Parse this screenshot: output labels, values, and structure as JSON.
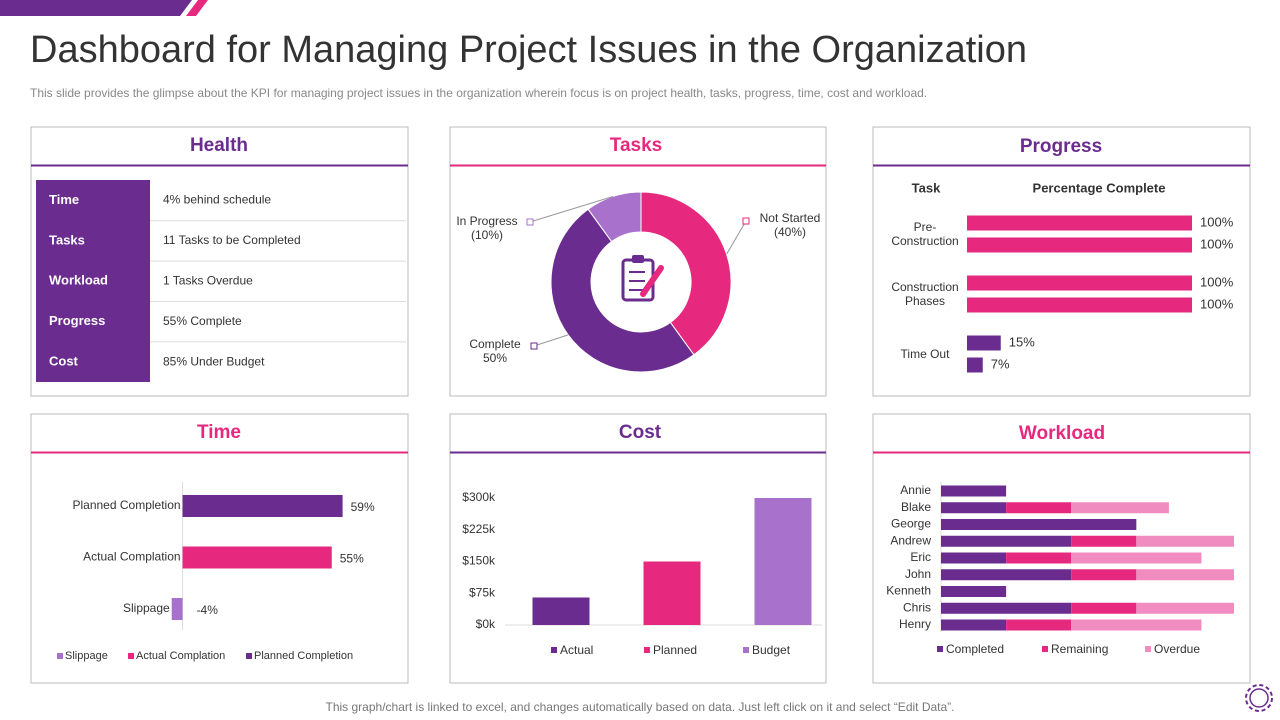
{
  "header": {
    "title": "Dashboard for Managing Project Issues in the Organization",
    "subtitle": "This slide provides  the glimpse about the KPI for managing project issues in the organization wherein  focus is on project health, tasks, progress, time, cost and workload."
  },
  "health": {
    "title": "Health",
    "rows": [
      {
        "label": "Time",
        "value": "4% behind schedule"
      },
      {
        "label": "Tasks",
        "value": "11 Tasks to be Completed"
      },
      {
        "label": "Workload",
        "value": "1 Tasks Overdue"
      },
      {
        "label": "Progress",
        "value": "55% Complete"
      },
      {
        "label": "Cost",
        "value": "85% Under Budget"
      }
    ]
  },
  "chart_data": [
    {
      "type": "pie",
      "title": "Tasks",
      "donut": true,
      "categories": [
        "Not Started",
        "Complete",
        "In Progress"
      ],
      "values": [
        40,
        50,
        10
      ],
      "value_labels": [
        "(40%)",
        "50%",
        "(10%)"
      ],
      "colors": [
        "#e6287f",
        "#6a2c8e",
        "#a872cc"
      ]
    },
    {
      "type": "bar",
      "orientation": "horizontal",
      "title": "Progress",
      "category_header": "Task",
      "value_header": "Percentage Complete",
      "categories": [
        "Pre-Construction",
        "Construction Phases",
        "Time Out"
      ],
      "colors": [
        "#e6287f",
        "#e6287f",
        "#6a2c8e"
      ],
      "series": [
        {
          "values": [
            100,
            100,
            15
          ],
          "value_labels": [
            "100%",
            "100%",
            "15%"
          ]
        },
        {
          "values": [
            100,
            100,
            7
          ],
          "value_labels": [
            "100%",
            "100%",
            "7%"
          ]
        }
      ],
      "xlim": [
        0,
        100
      ]
    },
    {
      "type": "bar",
      "orientation": "horizontal",
      "title": "Time",
      "categories": [
        "Planned Completion",
        "Actual Complation",
        "Slippage"
      ],
      "values": [
        59,
        55,
        -4
      ],
      "value_labels": [
        "59%",
        "55%",
        "-4%"
      ],
      "colors": [
        "#6a2c8e",
        "#e6287f",
        "#a872cc"
      ],
      "xlim": [
        -5,
        75
      ],
      "legend": true
    },
    {
      "type": "bar",
      "orientation": "vertical",
      "title": "Cost",
      "categories": [
        "Actual",
        "Planned",
        "Budget"
      ],
      "values": [
        65,
        150,
        300
      ],
      "colors": [
        "#6a2c8e",
        "#e6287f",
        "#a872cc"
      ],
      "ylim": [
        0,
        300
      ],
      "yticks": [
        {
          "value": 0,
          "label": "$0k"
        },
        {
          "value": 75,
          "label": "$75k"
        },
        {
          "value": 150,
          "label": "$150k"
        },
        {
          "value": 225,
          "label": "$225k"
        },
        {
          "value": 300,
          "label": "$300k"
        }
      ],
      "legend": true
    },
    {
      "type": "stacked-bar",
      "orientation": "horizontal",
      "title": "Workload",
      "categories": [
        "Annie",
        "Blake",
        "George",
        "Andrew",
        "Eric",
        "John",
        "Kenneth",
        "Chris",
        "Henry"
      ],
      "series": [
        {
          "name": "Completed",
          "color": "#6a2c8e",
          "values": [
            2,
            2,
            6,
            4,
            2,
            4,
            2,
            4,
            2
          ]
        },
        {
          "name": "Remaining",
          "color": "#e6287f",
          "values": [
            0,
            2,
            0,
            2,
            2,
            2,
            0,
            2,
            2
          ]
        },
        {
          "name": "Overdue",
          "color": "#f08cc0",
          "values": [
            0,
            3,
            0,
            3,
            4,
            3,
            0,
            3,
            4
          ]
        }
      ],
      "xlim": [
        0,
        9
      ]
    }
  ],
  "footer": "This graph/chart is linked to excel,  and changes automatically based on data. Just left click on it and select “Edit Data”."
}
